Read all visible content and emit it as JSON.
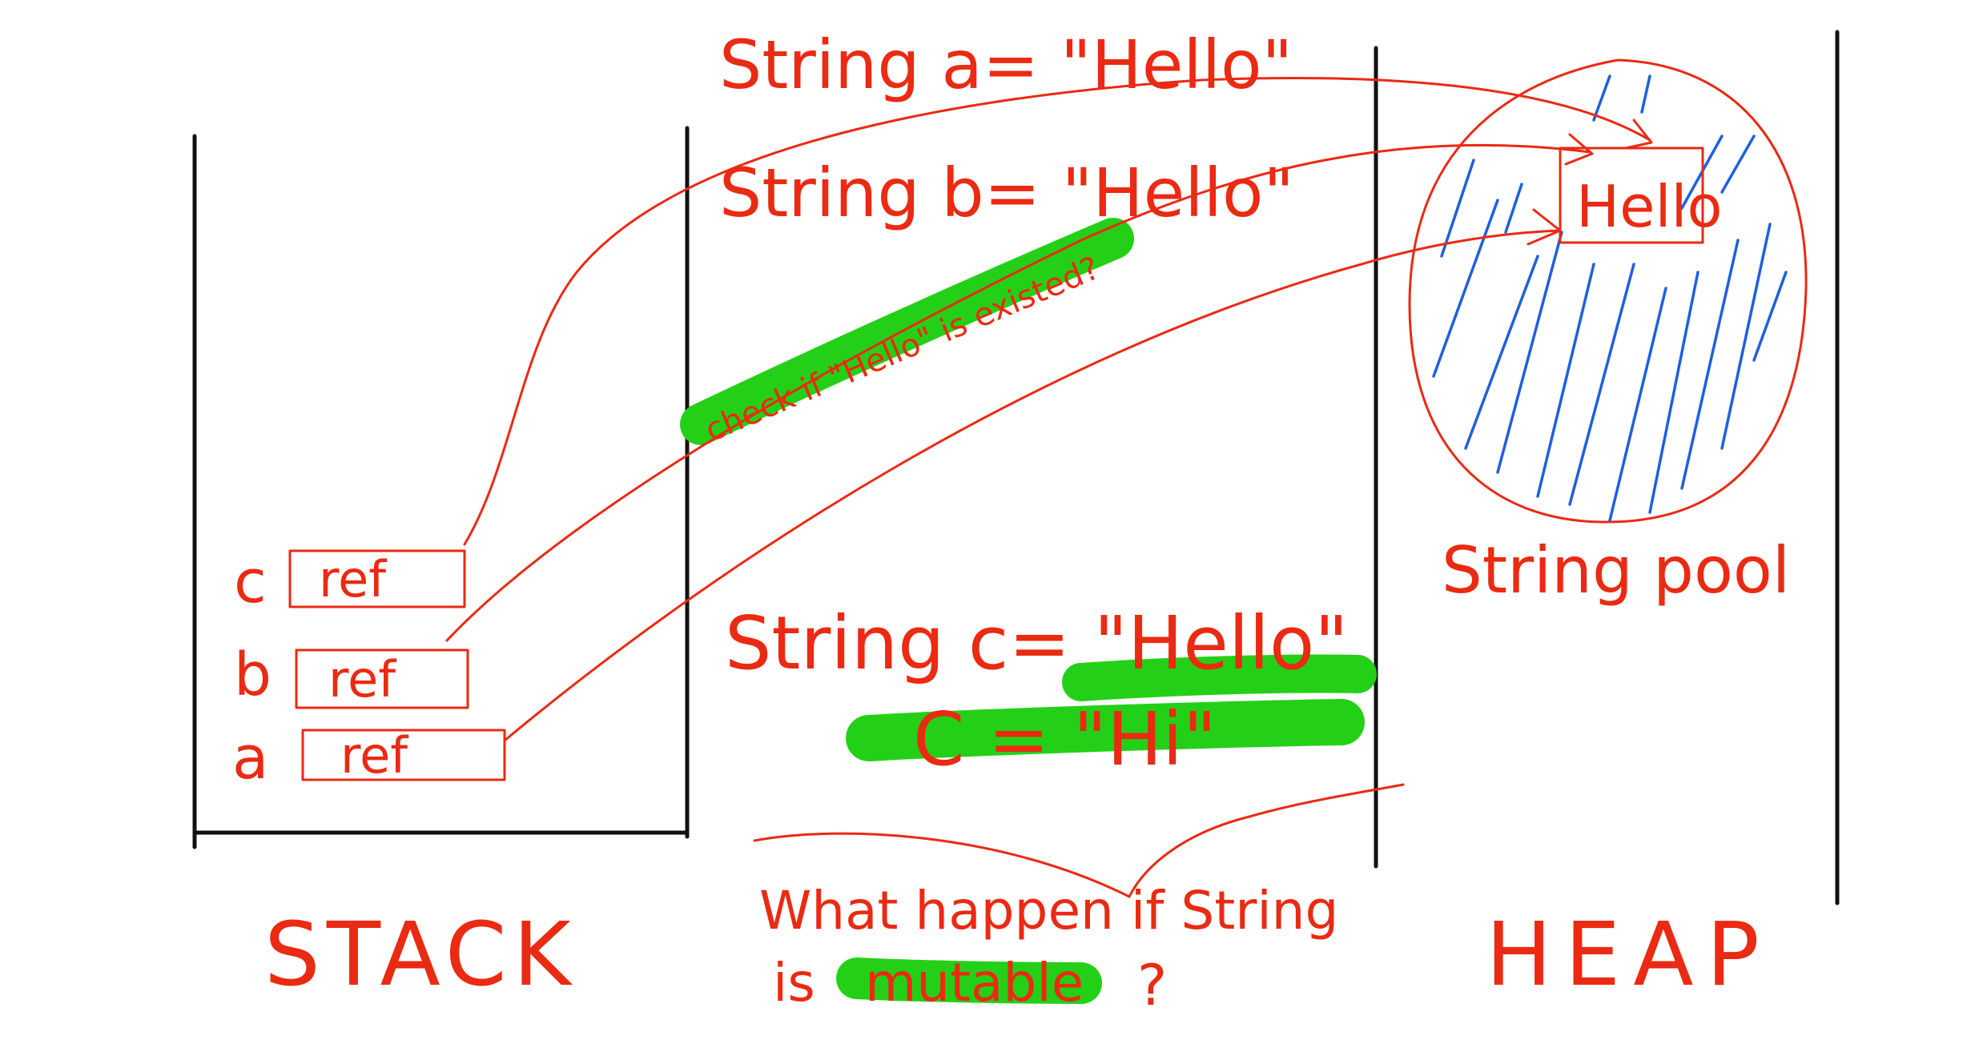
{
  "stack": {
    "label": "STACK",
    "slots": [
      {
        "var": "c",
        "value": "ref"
      },
      {
        "var": "b",
        "value": "ref"
      },
      {
        "var": "a",
        "value": "ref"
      }
    ]
  },
  "code": {
    "line_a": "String a= \"Hello\"",
    "line_b": "String b= \"Hello\"",
    "note_check": "check if \"Hello\" is existed?",
    "line_c": "String c= \"Hello\"",
    "line_c_reassign": "C = \"Hi\"",
    "question_part1": "What happen if String",
    "question_part2_prefix": "is",
    "question_highlight": "mutable",
    "question_suffix": "?"
  },
  "heap": {
    "label": "HEAP",
    "pool_label": "String pool",
    "pool_item": "Hello"
  },
  "colors": {
    "ink_red": "#ea2a12",
    "highlight_green": "#24d017",
    "pool_hatch_blue": "#1f5fe0",
    "divider_black": "#111111"
  }
}
